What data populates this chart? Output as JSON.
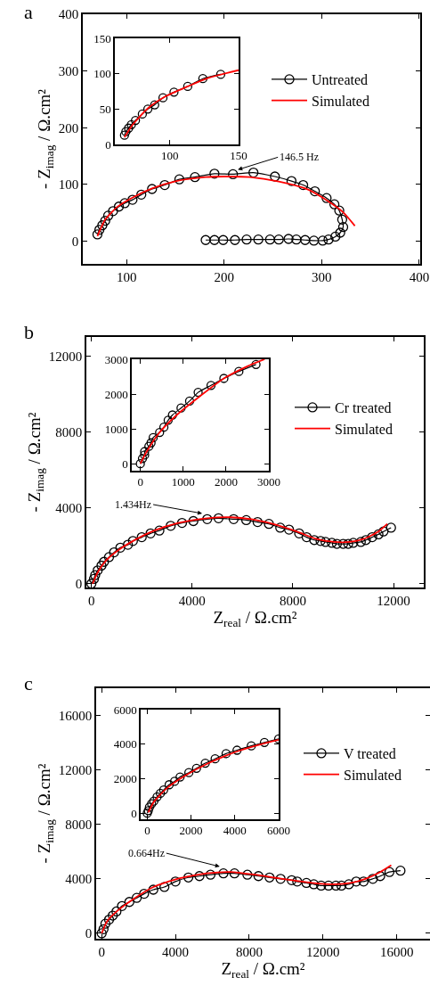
{
  "chart_data": [
    {
      "type": "line",
      "title": "a",
      "ylabel": "- Z$_{imag}$ / Ω.cm²",
      "xlim": [
        55,
        401
      ],
      "xticks": [
        100,
        200,
        300,
        400
      ],
      "ylim": [
        -40,
        400
      ],
      "yticks": [
        0,
        100,
        200,
        300,
        400
      ],
      "legend": "top right",
      "annotations": [
        {
          "text": "146.5 Hz",
          "x": 214,
          "y": 126
        }
      ],
      "series": [
        {
          "name": "Untreated",
          "color": "#000000",
          "marker": "circle",
          "x": [
            70,
            72,
            75,
            78,
            81,
            86,
            92,
            98,
            106,
            115,
            126,
            139,
            154,
            170,
            190,
            209,
            230,
            252,
            269,
            281,
            293,
            305,
            313,
            318,
            321,
            322,
            319,
            314,
            307,
            301,
            292,
            283,
            274,
            266,
            256,
            247,
            235,
            223,
            211,
            199,
            190,
            181
          ],
          "values": [
            12,
            20,
            28,
            36,
            45,
            53,
            61,
            67,
            73,
            82,
            92,
            99,
            109,
            113,
            119,
            118,
            121,
            114,
            106,
            99,
            88,
            76,
            65,
            54,
            38,
            25,
            15,
            8,
            3,
            1,
            1,
            2,
            3,
            4,
            3,
            3,
            3,
            3,
            2,
            2,
            2,
            2
          ]
        },
        {
          "name": "Simulated",
          "color": "#ff0000",
          "marker": "none",
          "x": [
            70,
            78,
            90,
            105,
            126,
            151,
            181,
            200,
            226,
            256,
            286,
            307,
            322,
            334
          ],
          "values": [
            9,
            38,
            60,
            76,
            93,
            106,
            113,
            114,
            113,
            105,
            91,
            70,
            51,
            27
          ]
        }
      ]
    },
    {
      "type": "line",
      "xlim": [
        60,
        150
      ],
      "xticks": [
        100,
        150
      ],
      "ylim": [
        0,
        150
      ],
      "yticks": [
        0,
        50,
        100,
        150
      ],
      "series": [
        {
          "color": "#000000",
          "marker": "circle",
          "x": [
            67,
            68,
            70,
            72,
            75,
            80,
            84,
            89,
            95,
            103,
            113,
            124,
            137
          ],
          "values": [
            13,
            18,
            23,
            28,
            34,
            43,
            50,
            56,
            66,
            74,
            82,
            93,
            99
          ]
        },
        {
          "color": "#ff0000",
          "marker": "none",
          "x": [
            67,
            73,
            84,
            97,
            113,
            128,
            150
          ],
          "values": [
            10,
            28,
            51,
            68,
            82,
            94,
            105
          ]
        }
      ]
    },
    {
      "type": "line",
      "title": "b",
      "xlabel": "Z$_{real}$ / Ω.cm²",
      "ylabel": "- Z$_{imag}$ / Ω.cm²",
      "xlim": [
        -200,
        13200
      ],
      "xticks": [
        0,
        4000,
        8000,
        12000
      ],
      "ylim": [
        -200,
        13000
      ],
      "yticks": [
        0,
        4000,
        8000,
        12000
      ],
      "legend": "top right",
      "annotations": [
        {
          "text": "1.434Hz",
          "x": 4400,
          "y": 3700
        }
      ],
      "series": [
        {
          "name": "Cr treated",
          "color": "#000000",
          "marker": "circle",
          "x": [
            0,
            100,
            150,
            250,
            400,
            500,
            700,
            900,
            1150,
            1450,
            1650,
            2000,
            2350,
            2700,
            3150,
            3600,
            4050,
            4600,
            5050,
            5650,
            6150,
            6600,
            7050,
            7500,
            7850,
            8250,
            8550,
            8850,
            9100,
            9300,
            9550,
            9750,
            10000,
            10200,
            10400,
            10700,
            10900,
            11150,
            11400,
            11600,
            11900
          ],
          "values": [
            0,
            250,
            450,
            700,
            950,
            1150,
            1400,
            1650,
            1900,
            2050,
            2250,
            2450,
            2650,
            2800,
            3050,
            3200,
            3300,
            3400,
            3450,
            3400,
            3350,
            3250,
            3150,
            2950,
            2850,
            2650,
            2450,
            2300,
            2250,
            2200,
            2150,
            2100,
            2100,
            2100,
            2150,
            2200,
            2300,
            2450,
            2600,
            2750,
            2950
          ]
        },
        {
          "name": "Simulated",
          "color": "#ff0000",
          "marker": "none",
          "x": [
            50,
            250,
            600,
            1100,
            1650,
            2500,
            3450,
            4600,
            5550,
            6350,
            7200,
            8150,
            8950,
            9650,
            10250,
            10800,
            11400,
            11750
          ],
          "values": [
            0,
            600,
            1250,
            1800,
            2250,
            2800,
            3200,
            3450,
            3500,
            3400,
            3150,
            2750,
            2350,
            2200,
            2200,
            2350,
            2750,
            3150
          ]
        }
      ]
    },
    {
      "type": "line",
      "xlim": [
        -200,
        3000
      ],
      "xticks": [
        0,
        1000,
        2000,
        3000
      ],
      "ylim": [
        -200,
        3000
      ],
      "yticks": [
        0,
        1000,
        2000,
        3000
      ],
      "series": [
        {
          "color": "#000000",
          "marker": "circle",
          "x": [
            0,
            50,
            100,
            100,
            200,
            250,
            300,
            450,
            550,
            650,
            750,
            950,
            1150,
            1350,
            1650,
            1950,
            2300,
            2700
          ],
          "values": [
            0,
            150,
            250,
            350,
            500,
            600,
            750,
            900,
            1050,
            1250,
            1400,
            1600,
            1800,
            2050,
            2250,
            2450,
            2650,
            2850
          ]
        },
        {
          "color": "#ff0000",
          "marker": "none",
          "x": [
            0,
            150,
            450,
            850,
            1350,
            1950,
            2500,
            2900
          ],
          "values": [
            0,
            350,
            900,
            1400,
            1900,
            2450,
            2800,
            3000
          ]
        }
      ]
    },
    {
      "type": "line",
      "title": "c",
      "xlabel": "Z$_{real}$ / Ω.cm²",
      "ylabel": "- Z$_{imag}$ / Ω.cm²",
      "xlim": [
        -300,
        17800
      ],
      "xticks": [
        0,
        4000,
        8000,
        12000,
        16000
      ],
      "ylim": [
        -400,
        18000
      ],
      "yticks": [
        0,
        4000,
        8000,
        12000,
        16000
      ],
      "legend": "top right",
      "annotations": [
        {
          "text": "0.664Hz",
          "x": 6400,
          "y": 4900
        }
      ],
      "series": [
        {
          "name": "V treated",
          "color": "#000000",
          "marker": "circle",
          "x": [
            0,
            100,
            200,
            400,
            600,
            800,
            1100,
            1500,
            1900,
            2300,
            2800,
            3400,
            4000,
            4700,
            5300,
            5900,
            6600,
            7200,
            7900,
            8500,
            9100,
            9700,
            10300,
            10600,
            11100,
            11500,
            11900,
            12300,
            12700,
            13000,
            13400,
            13800,
            14200,
            14700,
            15100,
            15600,
            16200
          ],
          "values": [
            0,
            300,
            700,
            1000,
            1300,
            1600,
            2000,
            2300,
            2600,
            2900,
            3200,
            3400,
            3800,
            4100,
            4200,
            4300,
            4400,
            4400,
            4300,
            4200,
            4100,
            4000,
            3900,
            3800,
            3700,
            3600,
            3500,
            3500,
            3500,
            3500,
            3600,
            3800,
            3800,
            4000,
            4200,
            4500,
            4600
          ]
        },
        {
          "name": "Simulated",
          "color": "#ff0000",
          "marker": "none",
          "x": [
            0,
            300,
            900,
            1700,
            2800,
            4100,
            5700,
            7000,
            8300,
            9800,
            11400,
            12700,
            13500,
            14300,
            15100,
            15700
          ],
          "values": [
            0,
            900,
            1700,
            2500,
            3400,
            4000,
            4400,
            4500,
            4300,
            4000,
            3700,
            3600,
            3700,
            4000,
            4500,
            5000
          ]
        }
      ]
    },
    {
      "type": "line",
      "xlim": [
        -300,
        6000
      ],
      "xticks": [
        0,
        2000,
        4000,
        6000
      ],
      "ylim": [
        -350,
        6000
      ],
      "yticks": [
        0,
        2000,
        4000,
        6000
      ],
      "series": [
        {
          "color": "#000000",
          "marker": "circle",
          "x": [
            0,
            50,
            100,
            200,
            300,
            450,
            600,
            750,
            1000,
            1250,
            1500,
            1900,
            2250,
            2650,
            3100,
            3600,
            4100,
            4750,
            5350,
            6000
          ],
          "values": [
            0,
            150,
            350,
            550,
            700,
            950,
            1150,
            1350,
            1650,
            1850,
            2100,
            2350,
            2600,
            2900,
            3150,
            3450,
            3650,
            3900,
            4100,
            4300
          ]
        },
        {
          "color": "#ff0000",
          "marker": "none",
          "x": [
            50,
            300,
            850,
            1700,
            2800,
            4150,
            5500,
            6000
          ],
          "values": [
            50,
            650,
            1400,
            2150,
            2900,
            3600,
            4100,
            4250
          ]
        }
      ]
    }
  ]
}
